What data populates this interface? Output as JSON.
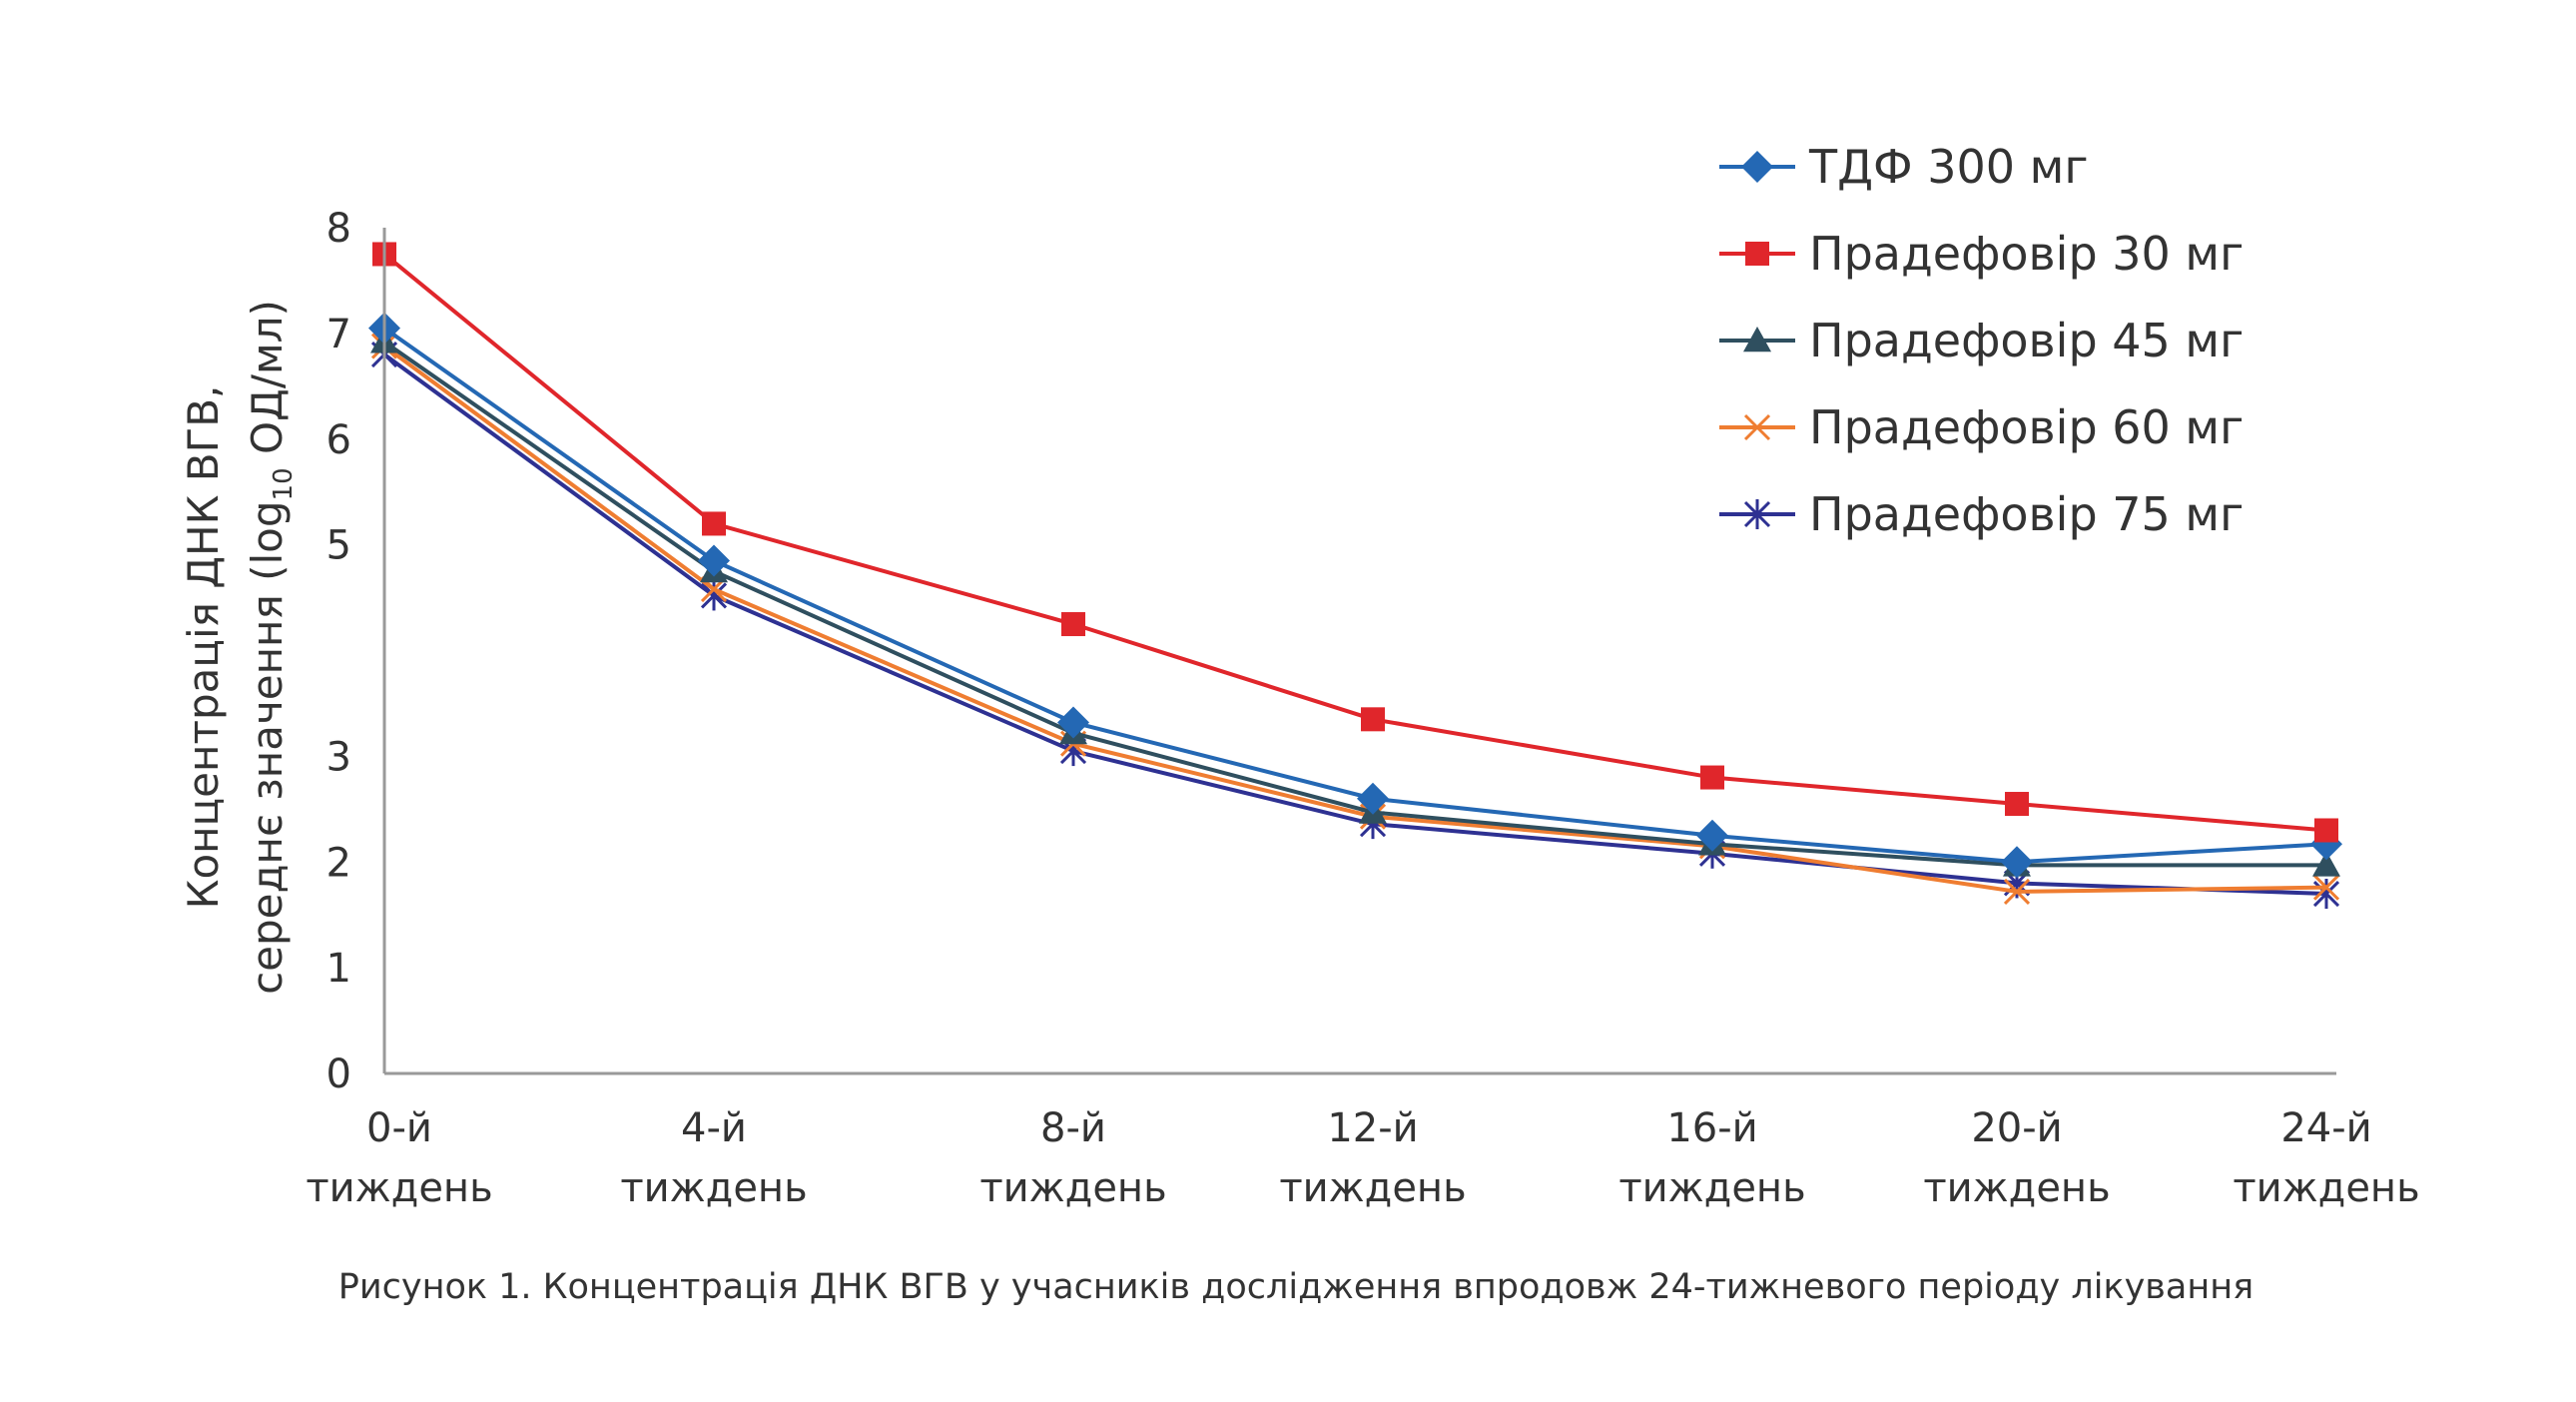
{
  "chart_data": {
    "type": "line",
    "caption": "Рисунок 1. Концентрація ДНК ВГВ у учасників дослідження впродовж 24-тижневого періоду лікування",
    "ylabel_line1": "Концентрація ДНК ВГВ,",
    "ylabel_line2_pre": "середнє значення (log",
    "ylabel_sub": "10",
    "ylabel_line2_post": " ОД/мл)",
    "yticks": [
      "0",
      "1",
      "2",
      "3",
      "5",
      "6",
      "7",
      "8"
    ],
    "ylim": [
      0,
      8
    ],
    "categories": [
      [
        "0-й",
        "тиждень"
      ],
      [
        "4-й",
        "тиждень"
      ],
      [
        "8-й",
        "тиждень"
      ],
      [
        "12-й",
        "тиждень"
      ],
      [
        "16-й",
        "тиждень"
      ],
      [
        "20-й",
        "тиждень"
      ],
      [
        "24-й",
        "тиждень"
      ]
    ],
    "series": [
      {
        "name": "ТДФ 300 мг",
        "color": "#2468b4",
        "marker": "diamond",
        "values": [
          7.05,
          4.85,
          3.32,
          2.6,
          2.25,
          2.0,
          2.17
        ]
      },
      {
        "name": "Прадефовір 30 мг",
        "color": "#e0262b",
        "marker": "square",
        "values": [
          7.75,
          5.2,
          4.25,
          3.35,
          2.8,
          2.55,
          2.3
        ]
      },
      {
        "name": "Прадефовір 45 мг",
        "color": "#2f4f5f",
        "marker": "triangle",
        "values": [
          6.92,
          4.75,
          3.22,
          2.47,
          2.17,
          1.97,
          1.97
        ]
      },
      {
        "name": "Прадефовір 60 мг",
        "color": "#ef7d31",
        "marker": "x",
        "values": [
          6.88,
          4.58,
          3.12,
          2.43,
          2.15,
          1.72,
          1.76
        ]
      },
      {
        "name": "Прадефовір 75 мг",
        "color": "#2e3192",
        "marker": "asterisk",
        "values": [
          6.8,
          4.52,
          3.05,
          2.36,
          2.08,
          1.8,
          1.7
        ]
      }
    ]
  }
}
